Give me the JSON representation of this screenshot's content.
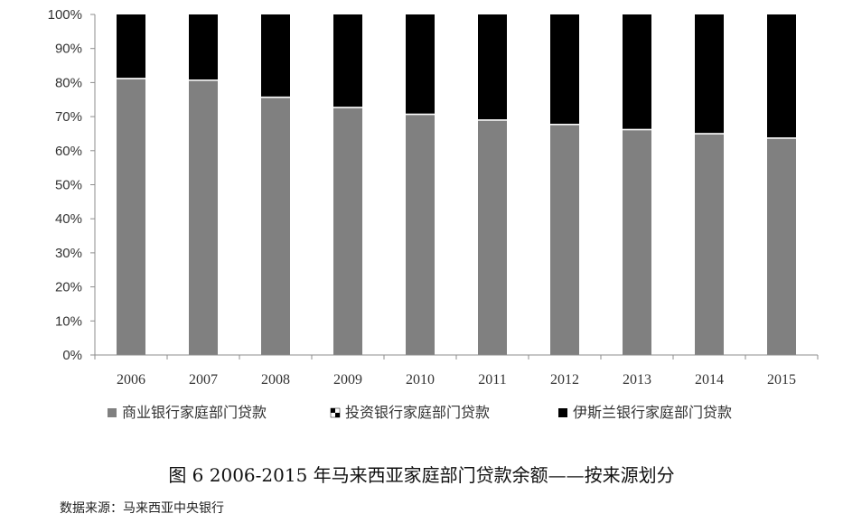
{
  "chart_data": {
    "type": "bar",
    "stacked": "percent",
    "categories": [
      "2006",
      "2007",
      "2008",
      "2009",
      "2010",
      "2011",
      "2012",
      "2013",
      "2014",
      "2015"
    ],
    "series": [
      {
        "name": "商业银行家庭部门贷款",
        "color": "#808080",
        "values": [
          81.0,
          80.5,
          75.5,
          72.5,
          70.5,
          68.8,
          67.5,
          66.0,
          64.8,
          63.5
        ]
      },
      {
        "name": "投资银行家庭部门贷款",
        "color": "#ffffff",
        "values": [
          0.4,
          0.4,
          0.4,
          0.4,
          0.4,
          0.4,
          0.4,
          0.4,
          0.4,
          0.4
        ]
      },
      {
        "name": "伊斯兰银行家庭部门贷款",
        "color": "#000000",
        "values": [
          18.6,
          19.1,
          24.1,
          27.1,
          29.1,
          30.8,
          32.1,
          33.6,
          34.8,
          36.1
        ]
      }
    ],
    "ylim": [
      0,
      100
    ],
    "yticks": [
      "0%",
      "10%",
      "20%",
      "30%",
      "40%",
      "50%",
      "60%",
      "70%",
      "80%",
      "90%",
      "100%"
    ],
    "grid": false,
    "legend_position": "bottom"
  },
  "caption": "图 6 2006-2015 年马来西亚家庭部门贷款余额——按来源划分",
  "source": "数据来源：马来西亚中央银行"
}
